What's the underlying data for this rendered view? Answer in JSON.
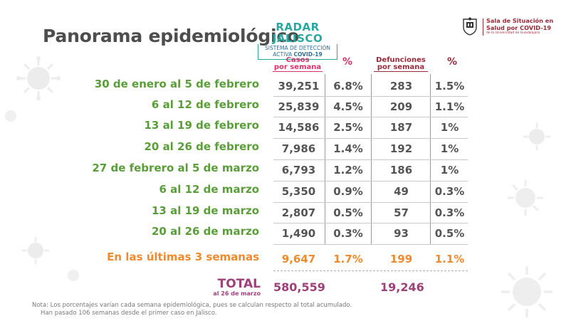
{
  "title": "Panorama epidemiológico",
  "radar": {
    "title": "RADAR JALISCO",
    "line1": "SISTEMA DE DETECCIÓN",
    "line2_a": "ACTIVA ",
    "line2_b": "COVID-19"
  },
  "sala": {
    "line1": "Sala de Situación en",
    "line2": "Salud por COVID-19",
    "line3": "de la Universidad de Guadalajara"
  },
  "headers": {
    "casos_1": "Casos",
    "casos_2": "por semana",
    "pct": "%",
    "def_1": "Defunciones",
    "def_2": "por semana"
  },
  "rows": [
    {
      "label": "30 de enero al 5 de febrero",
      "casos": "39,251",
      "pct_casos": "6.8%",
      "defunciones": "283",
      "pct_def": "1.5%"
    },
    {
      "label": "6 al 12 de febrero",
      "casos": "25,839",
      "pct_casos": "4.5%",
      "defunciones": "209",
      "pct_def": "1.1%"
    },
    {
      "label": "13 al 19 de febrero",
      "casos": "14,586",
      "pct_casos": "2.5%",
      "defunciones": "187",
      "pct_def": "1%"
    },
    {
      "label": "20 al 26 de febrero",
      "casos": "7,986",
      "pct_casos": "1.4%",
      "defunciones": "192",
      "pct_def": "1%"
    },
    {
      "label": "27 de febrero al 5 de marzo",
      "casos": "6,793",
      "pct_casos": "1.2%",
      "defunciones": "186",
      "pct_def": "1%"
    },
    {
      "label": "6 al 12 de marzo",
      "casos": "5,350",
      "pct_casos": "0.9%",
      "defunciones": "49",
      "pct_def": "0.3%"
    },
    {
      "label": "13 al 19 de marzo",
      "casos": "2,807",
      "pct_casos": "0.5%",
      "defunciones": "57",
      "pct_def": "0.3%"
    },
    {
      "label": "20 al 26 de marzo",
      "casos": "1,490",
      "pct_casos": "0.3%",
      "defunciones": "93",
      "pct_def": "0.5%"
    }
  ],
  "last3": {
    "label": "En las últimas 3 semanas",
    "casos": "9,647",
    "pct_casos": "1.7%",
    "defunciones": "199",
    "pct_def": "1.1%"
  },
  "total": {
    "label": "TOTAL",
    "sub": "al 26 de marzo",
    "casos": "580,559",
    "defunciones": "19,246"
  },
  "note": {
    "line1": "Nota: Los porcentajes varían cada semana epidemiológica, pues se calculan respecto al total acumulado.",
    "line2": "Han pasado 106 semanas desde el primer caso en Jalisco."
  },
  "colors": {
    "green": "#5a9e3a",
    "orange": "#f08a2c",
    "magenta": "#d9326b",
    "plum": "#a0407a",
    "teal": "#29a8a0"
  }
}
